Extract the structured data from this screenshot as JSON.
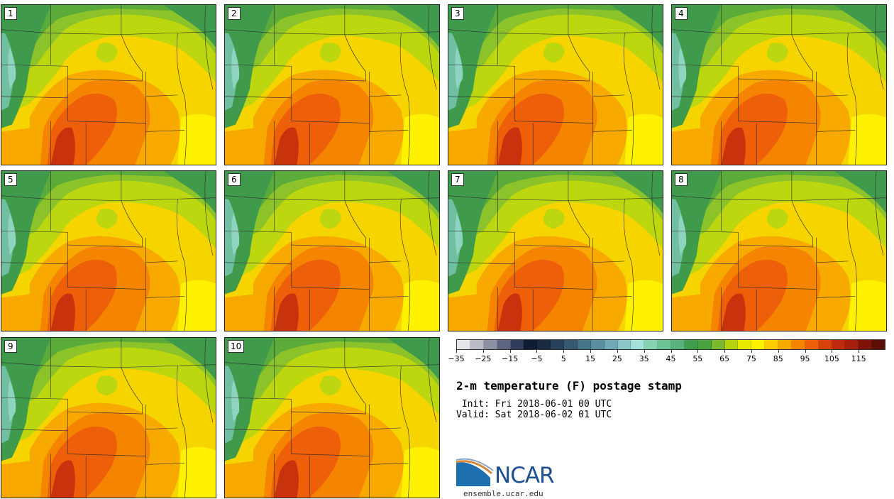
{
  "panels": [
    {
      "label": "1"
    },
    {
      "label": "2"
    },
    {
      "label": "3"
    },
    {
      "label": "4"
    },
    {
      "label": "5"
    },
    {
      "label": "6"
    },
    {
      "label": "7"
    },
    {
      "label": "8"
    },
    {
      "label": "9"
    },
    {
      "label": "10"
    }
  ],
  "colorbar": {
    "colors": [
      "#e6e6ea",
      "#b9bcc6",
      "#8c90a2",
      "#5e6580",
      "#303c5c",
      "#0f1a33",
      "#19293f",
      "#27405a",
      "#365971",
      "#467389",
      "#5a8fa0",
      "#71aab5",
      "#8bc6c8",
      "#a3e2d8",
      "#86d3b1",
      "#6cc393",
      "#55b27a",
      "#3e9e4c",
      "#4aa23f",
      "#7bb82d",
      "#b6d20f",
      "#e8eb00",
      "#fff200",
      "#fccc00",
      "#f7a900",
      "#f58500",
      "#ee5f0a",
      "#d8410c",
      "#be2b0d",
      "#a31e0b",
      "#7e1308",
      "#5e0d06"
    ],
    "ticks": [
      "−35",
      "−25",
      "−15",
      "−5",
      "5",
      "15",
      "25",
      "35",
      "45",
      "55",
      "65",
      "75",
      "85",
      "95",
      "105",
      "115"
    ]
  },
  "title": "2-m temperature (F) postage stamp",
  "init_line": " Init: Fri 2018-06-01 00 UTC",
  "valid_line": "Valid: Sat 2018-06-02 01 UTC",
  "logo": {
    "text": "NCAR",
    "url": "ensemble.ucar.edu"
  }
}
